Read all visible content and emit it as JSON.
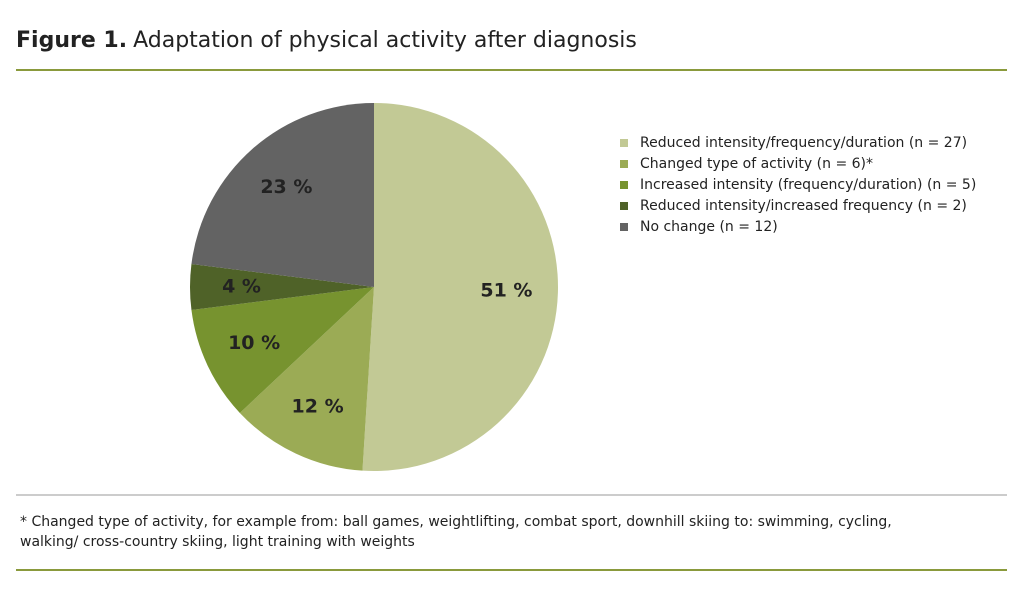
{
  "chart_data": {
    "type": "pie",
    "title_label": "Figure 1.",
    "title": "Adaptation of physical activity after diagnosis",
    "categories": [
      "Reduced intensity/frequency/duration (n = 27)",
      "Changed type of activity (n = 6)*",
      "Increased intensity (frequency/duration) (n = 5)",
      "Reduced intensity/increased frequency (n = 2)",
      "No change (n = 12)"
    ],
    "values": [
      51,
      12,
      10,
      4,
      23
    ],
    "value_labels": [
      "51 %",
      "12 %",
      "10 %",
      "4 %",
      "23 %"
    ],
    "colors": [
      "#c2c995",
      "#9bab55",
      "#77932f",
      "#4f6228",
      "#636363"
    ],
    "legend": "right",
    "footnote": "* Changed type of activity, for example from: ball games, weightlifting, combat sport, downhill skiing to: swimming, cycling, walking/ cross-country skiing, light training with weights"
  }
}
